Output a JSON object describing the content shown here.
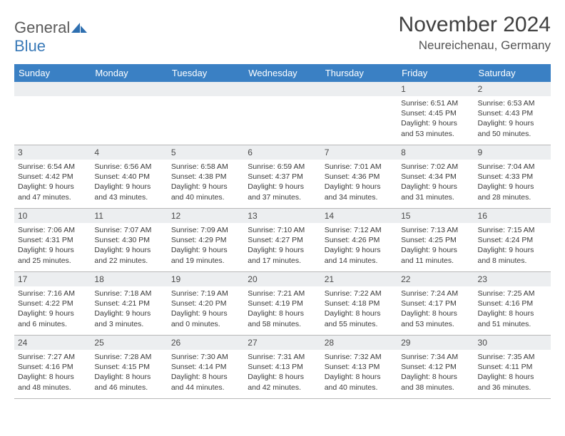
{
  "logo": {
    "general": "General",
    "blue": "Blue"
  },
  "header": {
    "title": "November 2024",
    "location": "Neureichenau, Germany"
  },
  "columns": [
    "Sunday",
    "Monday",
    "Tuesday",
    "Wednesday",
    "Thursday",
    "Friday",
    "Saturday"
  ],
  "colors": {
    "header_bg": "#3a80c4",
    "daynum_bg": "#eceef0",
    "accent": "#3a7ab8"
  },
  "layout": {
    "first_weekday_index": 5,
    "days_in_month": 30
  },
  "days": {
    "1": {
      "sunrise": "6:51 AM",
      "sunset": "4:45 PM",
      "daylight": "9 hours and 53 minutes."
    },
    "2": {
      "sunrise": "6:53 AM",
      "sunset": "4:43 PM",
      "daylight": "9 hours and 50 minutes."
    },
    "3": {
      "sunrise": "6:54 AM",
      "sunset": "4:42 PM",
      "daylight": "9 hours and 47 minutes."
    },
    "4": {
      "sunrise": "6:56 AM",
      "sunset": "4:40 PM",
      "daylight": "9 hours and 43 minutes."
    },
    "5": {
      "sunrise": "6:58 AM",
      "sunset": "4:38 PM",
      "daylight": "9 hours and 40 minutes."
    },
    "6": {
      "sunrise": "6:59 AM",
      "sunset": "4:37 PM",
      "daylight": "9 hours and 37 minutes."
    },
    "7": {
      "sunrise": "7:01 AM",
      "sunset": "4:36 PM",
      "daylight": "9 hours and 34 minutes."
    },
    "8": {
      "sunrise": "7:02 AM",
      "sunset": "4:34 PM",
      "daylight": "9 hours and 31 minutes."
    },
    "9": {
      "sunrise": "7:04 AM",
      "sunset": "4:33 PM",
      "daylight": "9 hours and 28 minutes."
    },
    "10": {
      "sunrise": "7:06 AM",
      "sunset": "4:31 PM",
      "daylight": "9 hours and 25 minutes."
    },
    "11": {
      "sunrise": "7:07 AM",
      "sunset": "4:30 PM",
      "daylight": "9 hours and 22 minutes."
    },
    "12": {
      "sunrise": "7:09 AM",
      "sunset": "4:29 PM",
      "daylight": "9 hours and 19 minutes."
    },
    "13": {
      "sunrise": "7:10 AM",
      "sunset": "4:27 PM",
      "daylight": "9 hours and 17 minutes."
    },
    "14": {
      "sunrise": "7:12 AM",
      "sunset": "4:26 PM",
      "daylight": "9 hours and 14 minutes."
    },
    "15": {
      "sunrise": "7:13 AM",
      "sunset": "4:25 PM",
      "daylight": "9 hours and 11 minutes."
    },
    "16": {
      "sunrise": "7:15 AM",
      "sunset": "4:24 PM",
      "daylight": "9 hours and 8 minutes."
    },
    "17": {
      "sunrise": "7:16 AM",
      "sunset": "4:22 PM",
      "daylight": "9 hours and 6 minutes."
    },
    "18": {
      "sunrise": "7:18 AM",
      "sunset": "4:21 PM",
      "daylight": "9 hours and 3 minutes."
    },
    "19": {
      "sunrise": "7:19 AM",
      "sunset": "4:20 PM",
      "daylight": "9 hours and 0 minutes."
    },
    "20": {
      "sunrise": "7:21 AM",
      "sunset": "4:19 PM",
      "daylight": "8 hours and 58 minutes."
    },
    "21": {
      "sunrise": "7:22 AM",
      "sunset": "4:18 PM",
      "daylight": "8 hours and 55 minutes."
    },
    "22": {
      "sunrise": "7:24 AM",
      "sunset": "4:17 PM",
      "daylight": "8 hours and 53 minutes."
    },
    "23": {
      "sunrise": "7:25 AM",
      "sunset": "4:16 PM",
      "daylight": "8 hours and 51 minutes."
    },
    "24": {
      "sunrise": "7:27 AM",
      "sunset": "4:16 PM",
      "daylight": "8 hours and 48 minutes."
    },
    "25": {
      "sunrise": "7:28 AM",
      "sunset": "4:15 PM",
      "daylight": "8 hours and 46 minutes."
    },
    "26": {
      "sunrise": "7:30 AM",
      "sunset": "4:14 PM",
      "daylight": "8 hours and 44 minutes."
    },
    "27": {
      "sunrise": "7:31 AM",
      "sunset": "4:13 PM",
      "daylight": "8 hours and 42 minutes."
    },
    "28": {
      "sunrise": "7:32 AM",
      "sunset": "4:13 PM",
      "daylight": "8 hours and 40 minutes."
    },
    "29": {
      "sunrise": "7:34 AM",
      "sunset": "4:12 PM",
      "daylight": "8 hours and 38 minutes."
    },
    "30": {
      "sunrise": "7:35 AM",
      "sunset": "4:11 PM",
      "daylight": "8 hours and 36 minutes."
    }
  },
  "labels": {
    "sunrise": "Sunrise: ",
    "sunset": "Sunset: ",
    "daylight": "Daylight: "
  }
}
